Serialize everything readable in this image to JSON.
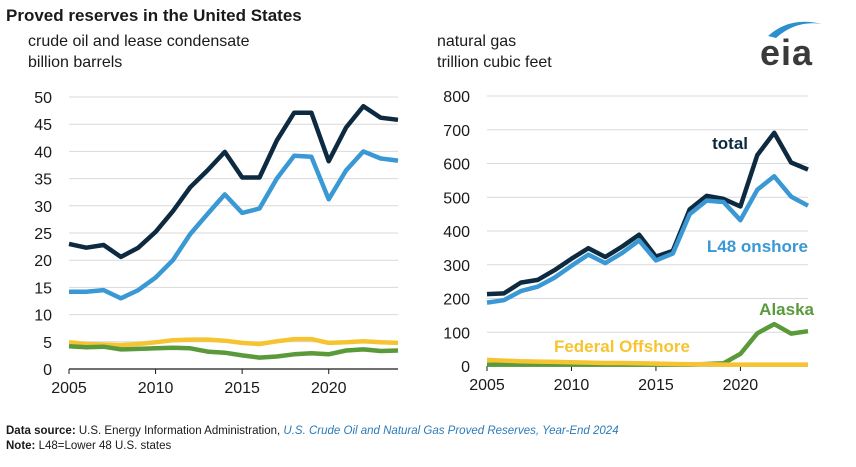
{
  "title": "Proved reserves in the United States",
  "logo": {
    "text": "eia",
    "accent": "#2b8fd0"
  },
  "footer": {
    "source_label": "Data source:",
    "source_text": "U.S. Energy Information Administration,",
    "source_link": "U.S. Crude Oil and Natural Gas Proved Reserves, Year-End 2024",
    "note_label": "Note:",
    "note_text": "L48=Lower 48 U.S. states"
  },
  "chart_data": [
    {
      "type": "line",
      "subtitle_line1": "crude oil and lease condensate",
      "subtitle_line2": "billion barrels",
      "xlim": [
        2005,
        2024
      ],
      "ylim": [
        0,
        50
      ],
      "yticks": [
        0,
        5,
        10,
        15,
        20,
        25,
        30,
        35,
        40,
        45,
        50
      ],
      "xticks": [
        2005,
        2010,
        2015,
        2020
      ],
      "grid": true,
      "x": [
        2005,
        2006,
        2007,
        2008,
        2009,
        2010,
        2011,
        2012,
        2013,
        2014,
        2015,
        2016,
        2017,
        2018,
        2019,
        2020,
        2021,
        2022,
        2023,
        2024
      ],
      "series": [
        {
          "color": "#0d2a40",
          "values": [
            23.0,
            22.3,
            22.8,
            20.6,
            22.3,
            25.2,
            29.0,
            33.4,
            36.5,
            39.9,
            35.2,
            35.2,
            42.0,
            47.1,
            47.1,
            38.2,
            44.4,
            48.3,
            46.2,
            45.8
          ]
        },
        {
          "color": "#3a98d4",
          "values": [
            14.2,
            14.2,
            14.5,
            13.0,
            14.5,
            16.8,
            20.0,
            24.8,
            28.5,
            32.1,
            28.7,
            29.5,
            35.0,
            39.2,
            39.0,
            31.2,
            36.5,
            40.0,
            38.7,
            38.3
          ]
        },
        {
          "color": "#f7c431",
          "values": [
            4.9,
            4.6,
            4.5,
            4.4,
            4.6,
            4.9,
            5.3,
            5.4,
            5.4,
            5.2,
            4.8,
            4.6,
            5.1,
            5.5,
            5.5,
            4.8,
            4.9,
            5.1,
            4.9,
            4.8
          ]
        },
        {
          "color": "#5a9a3a",
          "values": [
            4.2,
            4.0,
            4.1,
            3.6,
            3.7,
            3.8,
            3.9,
            3.8,
            3.2,
            3.0,
            2.5,
            2.1,
            2.3,
            2.7,
            2.9,
            2.7,
            3.4,
            3.6,
            3.3,
            3.4
          ]
        }
      ]
    },
    {
      "type": "line",
      "subtitle_line1": "natural gas",
      "subtitle_line2": "trillion cubic feet",
      "xlim": [
        2005,
        2024
      ],
      "ylim": [
        0,
        800
      ],
      "yticks": [
        0,
        100,
        200,
        300,
        400,
        500,
        600,
        700,
        800
      ],
      "xticks": [
        2005,
        2010,
        2015,
        2020
      ],
      "grid": true,
      "x": [
        2005,
        2006,
        2007,
        2008,
        2009,
        2010,
        2011,
        2012,
        2013,
        2014,
        2015,
        2016,
        2017,
        2018,
        2019,
        2020,
        2021,
        2022,
        2023,
        2024
      ],
      "series": [
        {
          "name": "total",
          "color": "#0d2a40",
          "values": [
            213,
            215,
            247,
            255,
            284,
            318,
            349,
            323,
            354,
            389,
            324,
            341,
            464,
            504,
            495,
            473,
            625,
            691,
            603,
            582
          ]
        },
        {
          "name": "L48 onshore",
          "color": "#3a98d4",
          "values": [
            188,
            195,
            222,
            235,
            262,
            297,
            330,
            305,
            335,
            372,
            313,
            333,
            450,
            490,
            486,
            432,
            522,
            562,
            502,
            475
          ]
        },
        {
          "name": "Alaska",
          "color": "#5a9a3a",
          "values": [
            4,
            4,
            4,
            4,
            4,
            4,
            4,
            4,
            4,
            4,
            4,
            4,
            4,
            6,
            8,
            36,
            97,
            124,
            96,
            103
          ]
        },
        {
          "name": "Federal Offshore",
          "color": "#f7c431",
          "values": [
            18,
            16,
            14,
            13,
            12,
            11,
            10,
            9,
            9,
            8,
            7,
            6,
            5,
            5,
            4,
            4,
            4,
            4,
            4,
            4
          ]
        }
      ]
    }
  ]
}
